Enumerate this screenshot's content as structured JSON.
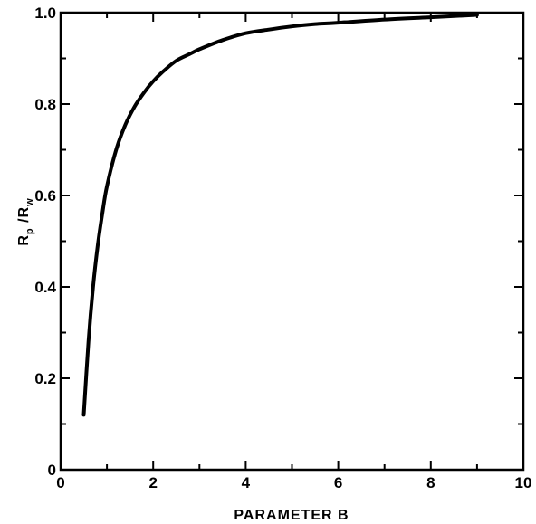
{
  "chart_data": {
    "type": "line",
    "xlabel": "PARAMETER B",
    "ylabel": "R_p / R_w",
    "ylabel_parts": {
      "main1": "R",
      "sub1": "p",
      "sep": " /",
      "main2": "R",
      "sub2": "w"
    },
    "xlim": [
      0,
      10
    ],
    "ylim": [
      0,
      1.0
    ],
    "xticks": [
      0,
      2,
      4,
      6,
      8,
      10
    ],
    "yticks": [
      0,
      0.2,
      0.4,
      0.6,
      0.8,
      1.0
    ],
    "xtick_labels": [
      "0",
      "2",
      "4",
      "6",
      "8",
      "10"
    ],
    "ytick_labels": [
      "0",
      "0.2",
      "0.4",
      "0.6",
      "0.8",
      "1.0"
    ],
    "grid": false,
    "line_color": "#000000",
    "series": [
      {
        "x": [
          0.5,
          0.6,
          0.7,
          0.8,
          0.9,
          1.0,
          1.2,
          1.4,
          1.6,
          1.8,
          2.0,
          2.2,
          2.5,
          2.8,
          3.0,
          3.5,
          4.0,
          4.5,
          5.0,
          5.5,
          6.0,
          7.0,
          8.0,
          9.0
        ],
        "y": [
          0.12,
          0.28,
          0.4,
          0.49,
          0.56,
          0.62,
          0.7,
          0.755,
          0.795,
          0.825,
          0.85,
          0.87,
          0.895,
          0.91,
          0.92,
          0.94,
          0.955,
          0.963,
          0.97,
          0.975,
          0.978,
          0.985,
          0.99,
          0.995
        ]
      }
    ]
  }
}
